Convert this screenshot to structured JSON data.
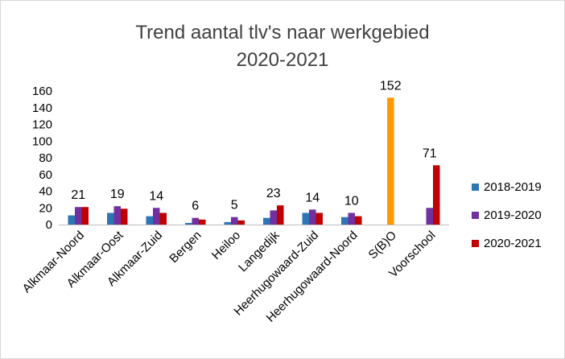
{
  "chart_data": {
    "type": "bar",
    "title_lines": [
      "Trend aantal tlv's naar werkgebied",
      "2020-2021"
    ],
    "categories": [
      "Alkmaar-Noord",
      "Alkmaar-Oost",
      "Alkmaar-Zuid",
      "Bergen",
      "Heiloo",
      "Langedijk",
      "Heerhugowaard-Zuid",
      "Heerhugowaard-Noord",
      "S(B)O",
      "Voorschool"
    ],
    "series": [
      {
        "name": "2018-2019",
        "color": "#2e75b6",
        "values": [
          11,
          14,
          10,
          2,
          3,
          8,
          14,
          9,
          null,
          null
        ]
      },
      {
        "name": "2019-2020",
        "color": "#7030a0",
        "values": [
          21,
          22,
          20,
          8,
          9,
          17,
          18,
          14,
          null,
          20
        ]
      },
      {
        "name": "2020-2021",
        "color": "#c00000",
        "values": [
          21,
          19,
          14,
          6,
          5,
          23,
          14,
          10,
          null,
          71
        ]
      }
    ],
    "special_bar": {
      "category": "S(B)O",
      "value": 152,
      "color": "#ff9900"
    },
    "data_labels": [
      "21",
      "19",
      "14",
      "6",
      "5",
      "23",
      "14",
      "10",
      "152",
      "71"
    ],
    "y_ticks": [
      "0",
      "20",
      "40",
      "60",
      "80",
      "100",
      "120",
      "140",
      "160"
    ],
    "ylim": [
      0,
      160
    ],
    "grid": false,
    "legend_position": "right"
  }
}
